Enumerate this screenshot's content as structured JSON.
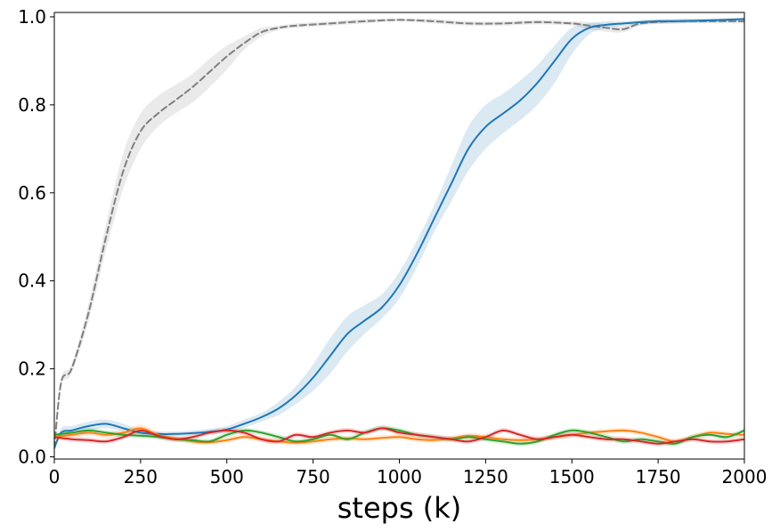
{
  "chart_data": {
    "type": "line",
    "title": "",
    "xlabel": "steps (k)",
    "ylabel": "",
    "xlim": [
      0,
      2000
    ],
    "ylim": [
      -0.005,
      1.01
    ],
    "xticks": [
      0,
      250,
      500,
      750,
      1000,
      1250,
      1500,
      1750,
      2000
    ],
    "yticks": [
      0.0,
      0.2,
      0.4,
      0.6,
      0.8,
      1.0
    ],
    "grid": false,
    "legend": "none",
    "series": [
      {
        "color": "#7f7f7f",
        "dash": "dashed",
        "x": [
          0,
          20,
          50,
          100,
          150,
          200,
          250,
          300,
          350,
          400,
          450,
          500,
          550,
          600,
          650,
          700,
          800,
          900,
          1000,
          1100,
          1200,
          1300,
          1400,
          1500,
          1550,
          1600,
          1650,
          1700,
          1800,
          1900,
          2000
        ],
        "y": [
          0.02,
          0.17,
          0.2,
          0.33,
          0.5,
          0.65,
          0.74,
          0.78,
          0.81,
          0.84,
          0.875,
          0.91,
          0.94,
          0.965,
          0.975,
          0.98,
          0.985,
          0.99,
          0.993,
          0.99,
          0.985,
          0.985,
          0.988,
          0.985,
          0.98,
          0.975,
          0.972,
          0.985,
          0.99,
          0.99,
          0.99
        ],
        "lower": [
          0.02,
          0.16,
          0.19,
          0.31,
          0.47,
          0.61,
          0.7,
          0.75,
          0.78,
          0.805,
          0.84,
          0.88,
          0.925,
          0.955,
          0.97,
          0.975,
          0.98,
          0.985,
          0.99,
          0.985,
          0.98,
          0.98,
          0.983,
          0.98,
          0.972,
          0.966,
          0.965,
          0.98,
          0.985,
          0.985,
          0.985
        ],
        "upper": [
          0.02,
          0.18,
          0.21,
          0.35,
          0.53,
          0.69,
          0.78,
          0.82,
          0.845,
          0.87,
          0.905,
          0.935,
          0.955,
          0.975,
          0.98,
          0.985,
          0.99,
          0.995,
          0.996,
          0.995,
          0.99,
          0.99,
          0.993,
          0.99,
          0.988,
          0.984,
          0.98,
          0.99,
          0.995,
          0.995,
          0.995
        ]
      },
      {
        "color": "#1f77b4",
        "dash": "solid",
        "x": [
          0,
          20,
          50,
          100,
          150,
          200,
          250,
          300,
          350,
          400,
          450,
          500,
          550,
          600,
          650,
          700,
          750,
          800,
          850,
          900,
          950,
          1000,
          1050,
          1100,
          1150,
          1200,
          1250,
          1300,
          1350,
          1400,
          1450,
          1500,
          1550,
          1600,
          1650,
          1700,
          1750,
          1800,
          1900,
          2000
        ],
        "y": [
          0.02,
          0.055,
          0.06,
          0.07,
          0.075,
          0.065,
          0.055,
          0.052,
          0.052,
          0.054,
          0.057,
          0.062,
          0.075,
          0.09,
          0.11,
          0.14,
          0.18,
          0.23,
          0.28,
          0.31,
          0.34,
          0.39,
          0.46,
          0.54,
          0.62,
          0.7,
          0.75,
          0.78,
          0.81,
          0.85,
          0.9,
          0.95,
          0.975,
          0.982,
          0.985,
          0.988,
          0.99,
          0.99,
          0.992,
          0.995
        ],
        "lower": [
          0.02,
          0.045,
          0.05,
          0.06,
          0.065,
          0.058,
          0.05,
          0.047,
          0.047,
          0.049,
          0.051,
          0.055,
          0.066,
          0.08,
          0.095,
          0.12,
          0.15,
          0.19,
          0.24,
          0.28,
          0.315,
          0.36,
          0.43,
          0.51,
          0.58,
          0.65,
          0.7,
          0.735,
          0.765,
          0.8,
          0.85,
          0.915,
          0.96,
          0.975,
          0.98,
          0.983,
          0.985,
          0.985,
          0.988,
          0.99
        ],
        "upper": [
          0.02,
          0.065,
          0.07,
          0.08,
          0.085,
          0.075,
          0.062,
          0.058,
          0.058,
          0.06,
          0.064,
          0.07,
          0.085,
          0.1,
          0.125,
          0.16,
          0.21,
          0.27,
          0.32,
          0.345,
          0.37,
          0.42,
          0.49,
          0.57,
          0.66,
          0.75,
          0.8,
          0.825,
          0.855,
          0.89,
          0.935,
          0.975,
          0.985,
          0.99,
          0.99,
          0.993,
          0.995,
          0.995,
          0.996,
          0.998
        ]
      },
      {
        "color": "#ff7f0e",
        "dash": "solid",
        "x": [
          0,
          50,
          100,
          150,
          200,
          250,
          300,
          350,
          400,
          450,
          500,
          550,
          600,
          650,
          700,
          750,
          800,
          850,
          900,
          950,
          1000,
          1050,
          1100,
          1150,
          1200,
          1250,
          1300,
          1350,
          1400,
          1450,
          1500,
          1550,
          1600,
          1650,
          1700,
          1750,
          1800,
          1850,
          1900,
          1950,
          2000
        ],
        "y": [
          0.045,
          0.05,
          0.055,
          0.05,
          0.055,
          0.065,
          0.05,
          0.042,
          0.035,
          0.033,
          0.038,
          0.045,
          0.04,
          0.035,
          0.032,
          0.035,
          0.04,
          0.042,
          0.04,
          0.043,
          0.045,
          0.04,
          0.038,
          0.042,
          0.048,
          0.045,
          0.04,
          0.038,
          0.04,
          0.045,
          0.05,
          0.055,
          0.058,
          0.06,
          0.055,
          0.045,
          0.035,
          0.045,
          0.055,
          0.052,
          0.05
        ],
        "lower": [
          0.04,
          0.043,
          0.048,
          0.043,
          0.048,
          0.057,
          0.043,
          0.036,
          0.029,
          0.027,
          0.032,
          0.039,
          0.034,
          0.029,
          0.026,
          0.029,
          0.034,
          0.036,
          0.034,
          0.037,
          0.039,
          0.034,
          0.032,
          0.036,
          0.042,
          0.039,
          0.034,
          0.032,
          0.034,
          0.039,
          0.044,
          0.049,
          0.052,
          0.054,
          0.049,
          0.039,
          0.029,
          0.039,
          0.049,
          0.046,
          0.044
        ],
        "upper": [
          0.05,
          0.057,
          0.062,
          0.057,
          0.062,
          0.073,
          0.057,
          0.048,
          0.041,
          0.039,
          0.044,
          0.051,
          0.046,
          0.041,
          0.038,
          0.041,
          0.046,
          0.048,
          0.046,
          0.049,
          0.051,
          0.046,
          0.044,
          0.048,
          0.054,
          0.051,
          0.046,
          0.044,
          0.046,
          0.051,
          0.056,
          0.061,
          0.064,
          0.066,
          0.061,
          0.051,
          0.041,
          0.051,
          0.061,
          0.058,
          0.056
        ]
      },
      {
        "color": "#2ca02c",
        "dash": "solid",
        "x": [
          0,
          50,
          100,
          150,
          200,
          250,
          300,
          350,
          400,
          450,
          500,
          550,
          600,
          650,
          700,
          750,
          800,
          850,
          900,
          950,
          1000,
          1050,
          1100,
          1150,
          1200,
          1250,
          1300,
          1350,
          1400,
          1450,
          1500,
          1550,
          1600,
          1650,
          1700,
          1750,
          1800,
          1850,
          1900,
          1950,
          2000
        ],
        "y": [
          0.05,
          0.055,
          0.06,
          0.055,
          0.05,
          0.048,
          0.045,
          0.04,
          0.038,
          0.035,
          0.05,
          0.06,
          0.055,
          0.045,
          0.035,
          0.04,
          0.05,
          0.04,
          0.055,
          0.065,
          0.06,
          0.05,
          0.045,
          0.04,
          0.045,
          0.04,
          0.035,
          0.03,
          0.035,
          0.05,
          0.06,
          0.055,
          0.045,
          0.035,
          0.04,
          0.035,
          0.03,
          0.045,
          0.05,
          0.045,
          0.06
        ],
        "lower": [
          0.045,
          0.049,
          0.054,
          0.049,
          0.044,
          0.042,
          0.039,
          0.034,
          0.032,
          0.029,
          0.044,
          0.054,
          0.049,
          0.039,
          0.029,
          0.034,
          0.044,
          0.034,
          0.049,
          0.059,
          0.054,
          0.044,
          0.039,
          0.034,
          0.039,
          0.034,
          0.029,
          0.024,
          0.029,
          0.044,
          0.054,
          0.049,
          0.039,
          0.029,
          0.034,
          0.029,
          0.024,
          0.039,
          0.044,
          0.039,
          0.054
        ],
        "upper": [
          0.055,
          0.061,
          0.066,
          0.061,
          0.056,
          0.054,
          0.051,
          0.046,
          0.044,
          0.041,
          0.056,
          0.066,
          0.061,
          0.051,
          0.041,
          0.046,
          0.056,
          0.046,
          0.061,
          0.071,
          0.066,
          0.056,
          0.051,
          0.046,
          0.051,
          0.046,
          0.041,
          0.036,
          0.041,
          0.056,
          0.066,
          0.061,
          0.051,
          0.041,
          0.046,
          0.041,
          0.036,
          0.051,
          0.056,
          0.051,
          0.066
        ]
      },
      {
        "color": "#d62728",
        "dash": "solid",
        "x": [
          0,
          50,
          100,
          150,
          200,
          250,
          300,
          350,
          400,
          450,
          500,
          550,
          600,
          650,
          700,
          750,
          800,
          850,
          900,
          950,
          1000,
          1050,
          1100,
          1150,
          1200,
          1250,
          1300,
          1350,
          1400,
          1450,
          1500,
          1550,
          1600,
          1650,
          1700,
          1750,
          1800,
          1850,
          1900,
          1950,
          2000
        ],
        "y": [
          0.045,
          0.04,
          0.038,
          0.035,
          0.045,
          0.06,
          0.048,
          0.04,
          0.045,
          0.055,
          0.06,
          0.055,
          0.04,
          0.035,
          0.05,
          0.045,
          0.055,
          0.06,
          0.055,
          0.065,
          0.055,
          0.05,
          0.045,
          0.04,
          0.035,
          0.045,
          0.06,
          0.05,
          0.04,
          0.045,
          0.05,
          0.045,
          0.04,
          0.04,
          0.035,
          0.03,
          0.035,
          0.04,
          0.035,
          0.035,
          0.04
        ],
        "lower": [
          0.039,
          0.034,
          0.032,
          0.029,
          0.039,
          0.054,
          0.042,
          0.034,
          0.039,
          0.049,
          0.054,
          0.049,
          0.034,
          0.029,
          0.044,
          0.039,
          0.049,
          0.054,
          0.049,
          0.059,
          0.049,
          0.044,
          0.039,
          0.034,
          0.029,
          0.039,
          0.054,
          0.044,
          0.034,
          0.039,
          0.044,
          0.039,
          0.034,
          0.034,
          0.029,
          0.024,
          0.029,
          0.034,
          0.029,
          0.029,
          0.034
        ],
        "upper": [
          0.051,
          0.046,
          0.044,
          0.041,
          0.051,
          0.066,
          0.054,
          0.046,
          0.051,
          0.061,
          0.066,
          0.061,
          0.046,
          0.041,
          0.056,
          0.051,
          0.061,
          0.066,
          0.061,
          0.071,
          0.061,
          0.056,
          0.051,
          0.046,
          0.041,
          0.051,
          0.066,
          0.056,
          0.046,
          0.051,
          0.056,
          0.051,
          0.046,
          0.046,
          0.041,
          0.036,
          0.041,
          0.046,
          0.041,
          0.041,
          0.046
        ]
      }
    ]
  }
}
